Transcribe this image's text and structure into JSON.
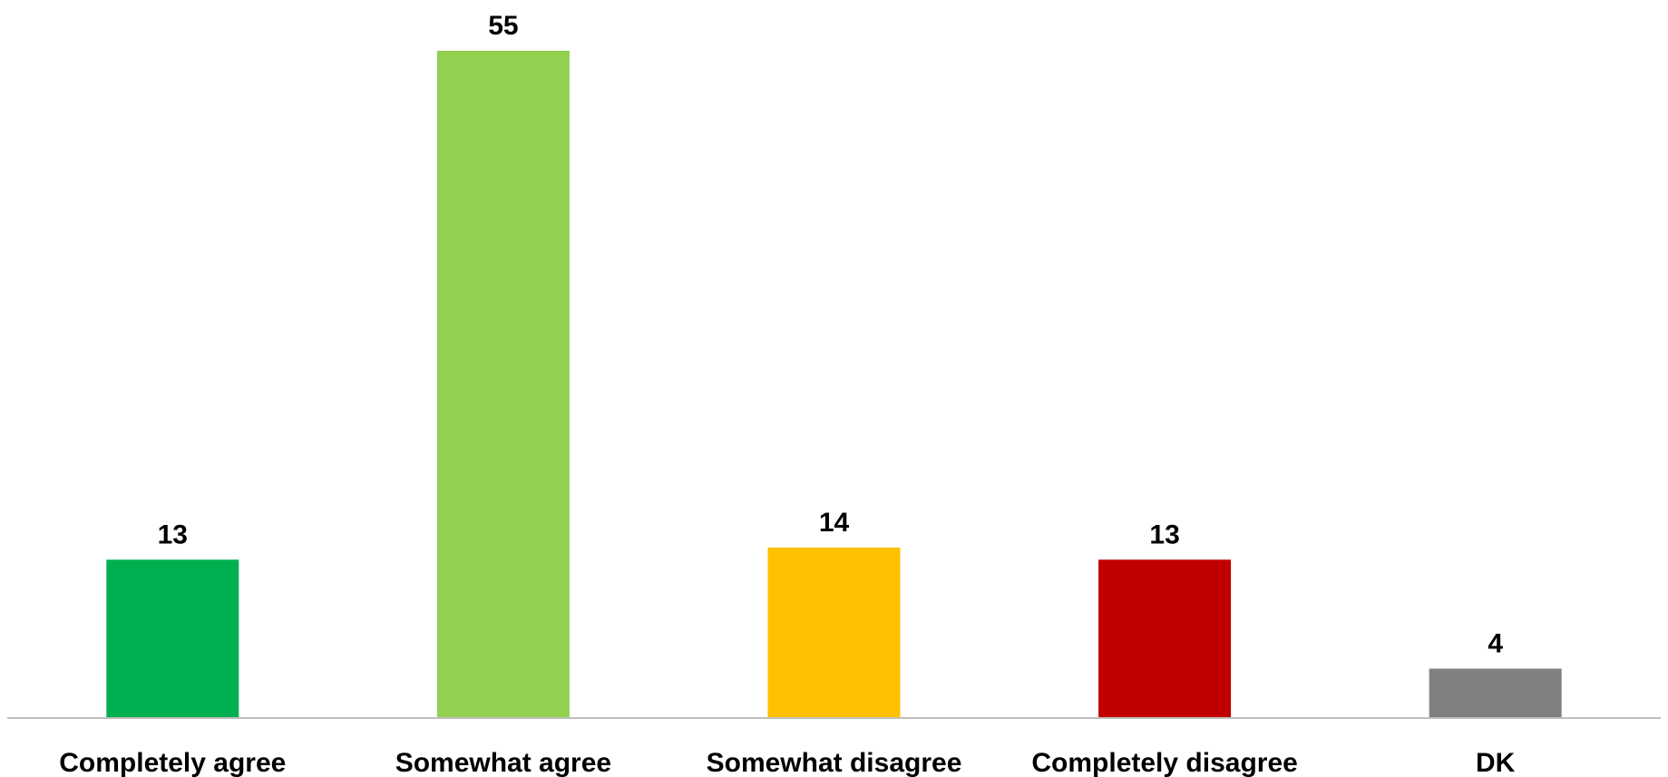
{
  "chart_data": {
    "type": "bar",
    "title": "",
    "xlabel": "",
    "ylabel": "",
    "categories": [
      "Completely agree",
      "Somewhat agree",
      "Somewhat disagree",
      "Completely disagree",
      "DK"
    ],
    "values": [
      13,
      55,
      14,
      13,
      4
    ],
    "value_labels": [
      "13",
      "55",
      "14",
      "13",
      "4"
    ],
    "colors": [
      "#00B050",
      "#92D050",
      "#FFC000",
      "#C00000",
      "#808080"
    ],
    "ylim": [
      0,
      55
    ],
    "grid": false,
    "legend": "none"
  }
}
